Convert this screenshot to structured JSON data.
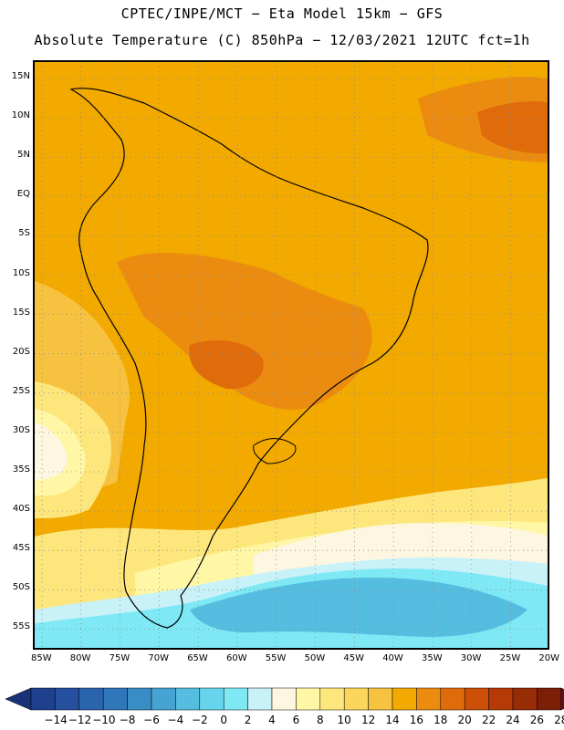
{
  "header": {
    "line1": "CPTEC/INPE/MCT −  Eta Model 15km − GFS",
    "line2": "Absolute Temperature (C) 850hPa − 12/03/2021 12UTC fct=1h"
  },
  "lat_labels": [
    "15N",
    "10N",
    "5N",
    "EQ",
    "5S",
    "10S",
    "15S",
    "20S",
    "25S",
    "30S",
    "35S",
    "40S",
    "45S",
    "50S",
    "55S"
  ],
  "lon_labels": [
    "85W",
    "80W",
    "75W",
    "70W",
    "65W",
    "60W",
    "55W",
    "50W",
    "45W",
    "40W",
    "35W",
    "30W",
    "25W",
    "20W"
  ],
  "colorbar": {
    "labels": [
      "−14",
      "−12",
      "−10",
      "−8",
      "−6",
      "−4",
      "−2",
      "0",
      "2",
      "4",
      "6",
      "8",
      "10",
      "12",
      "14",
      "16",
      "18",
      "20",
      "22",
      "24",
      "26",
      "28"
    ],
    "colors": [
      "#1f3f8f",
      "#25509f",
      "#2a64ad",
      "#2f77ba",
      "#3a8cc6",
      "#46a3d3",
      "#55bde0",
      "#66d4ec",
      "#7ee9f5",
      "#c9f1f8",
      "#fdf6e0",
      "#fff7a6",
      "#fde77c",
      "#fbd55c",
      "#f6c23f",
      "#f2a900",
      "#eb8c10",
      "#e06b0a",
      "#cd4f08",
      "#b53a07",
      "#982c07",
      "#7b1f07"
    ],
    "end_low": "#1a3278",
    "end_high": "#6a0a25"
  },
  "map": {
    "ocean_color": "#f2a900",
    "region_colors": {
      "south_cold": "#55bde0",
      "south_cool": "#7ee9f5",
      "pale": "#c9f1f8",
      "cream": "#fdf6e0",
      "light_yellow": "#fff7a6",
      "yellow": "#fde77c",
      "gold": "#f6c23f",
      "warm": "#eb8c10",
      "hot": "#e06b0a"
    }
  }
}
